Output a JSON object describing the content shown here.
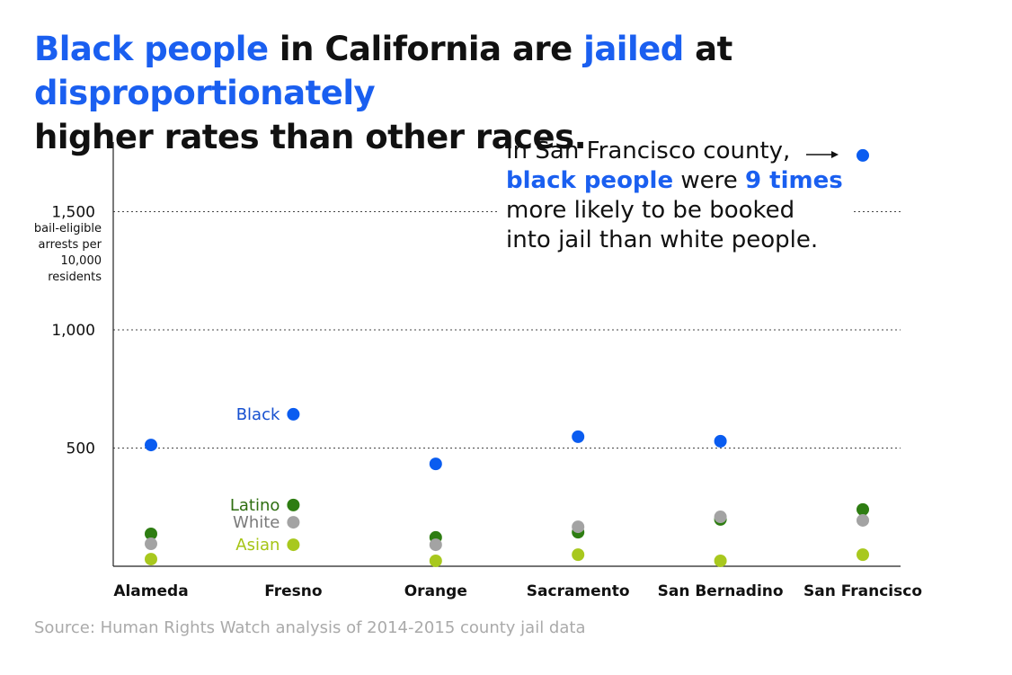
{
  "title": {
    "p1": "Black people",
    "p2": " in California are ",
    "p3": "jailed",
    "p4": " at ",
    "p5": "disproportionately",
    "p6": " higher rates than other races."
  },
  "annotation": {
    "l1": "In San Francisco county,",
    "l2a": "black people",
    "l2b": " were ",
    "l2c": "9 times",
    "l3": "more likely to be booked",
    "l4": "into jail than white people."
  },
  "source": "Source: Human Rights Watch analysis of 2014-2015 county jail data",
  "chart_data": {
    "type": "scatter",
    "ylabel": [
      "bail-eligible",
      "arrests per",
      "10,000",
      "residents"
    ],
    "ylim": [
      0,
      1800
    ],
    "yticks": [
      500,
      1000,
      1500
    ],
    "ytick_labels": [
      "500",
      "1,000",
      "1,500"
    ],
    "grid": true,
    "categories": [
      "Alameda",
      "Fresno",
      "Orange",
      "Sacramento",
      "San Bernadino",
      "San Francisco"
    ],
    "legend_at_category": "Fresno",
    "series": [
      {
        "name": "Black",
        "color": "#0a5cf0",
        "label_color": "#1650d0",
        "values": [
          513,
          643,
          433,
          548,
          529,
          1738
        ]
      },
      {
        "name": "Latino",
        "color": "#2e7d12",
        "label_color": "#2e6e10",
        "values": [
          137,
          259,
          122,
          144,
          198,
          240
        ]
      },
      {
        "name": "White",
        "color": "#a3a3a3",
        "label_color": "#7a7a7a",
        "values": [
          95,
          186,
          91,
          167,
          209,
          194
        ]
      },
      {
        "name": "Asian",
        "color": "#a8c81e",
        "label_color": "#a6c414",
        "values": [
          30,
          91,
          23,
          49,
          23,
          49
        ]
      }
    ]
  }
}
